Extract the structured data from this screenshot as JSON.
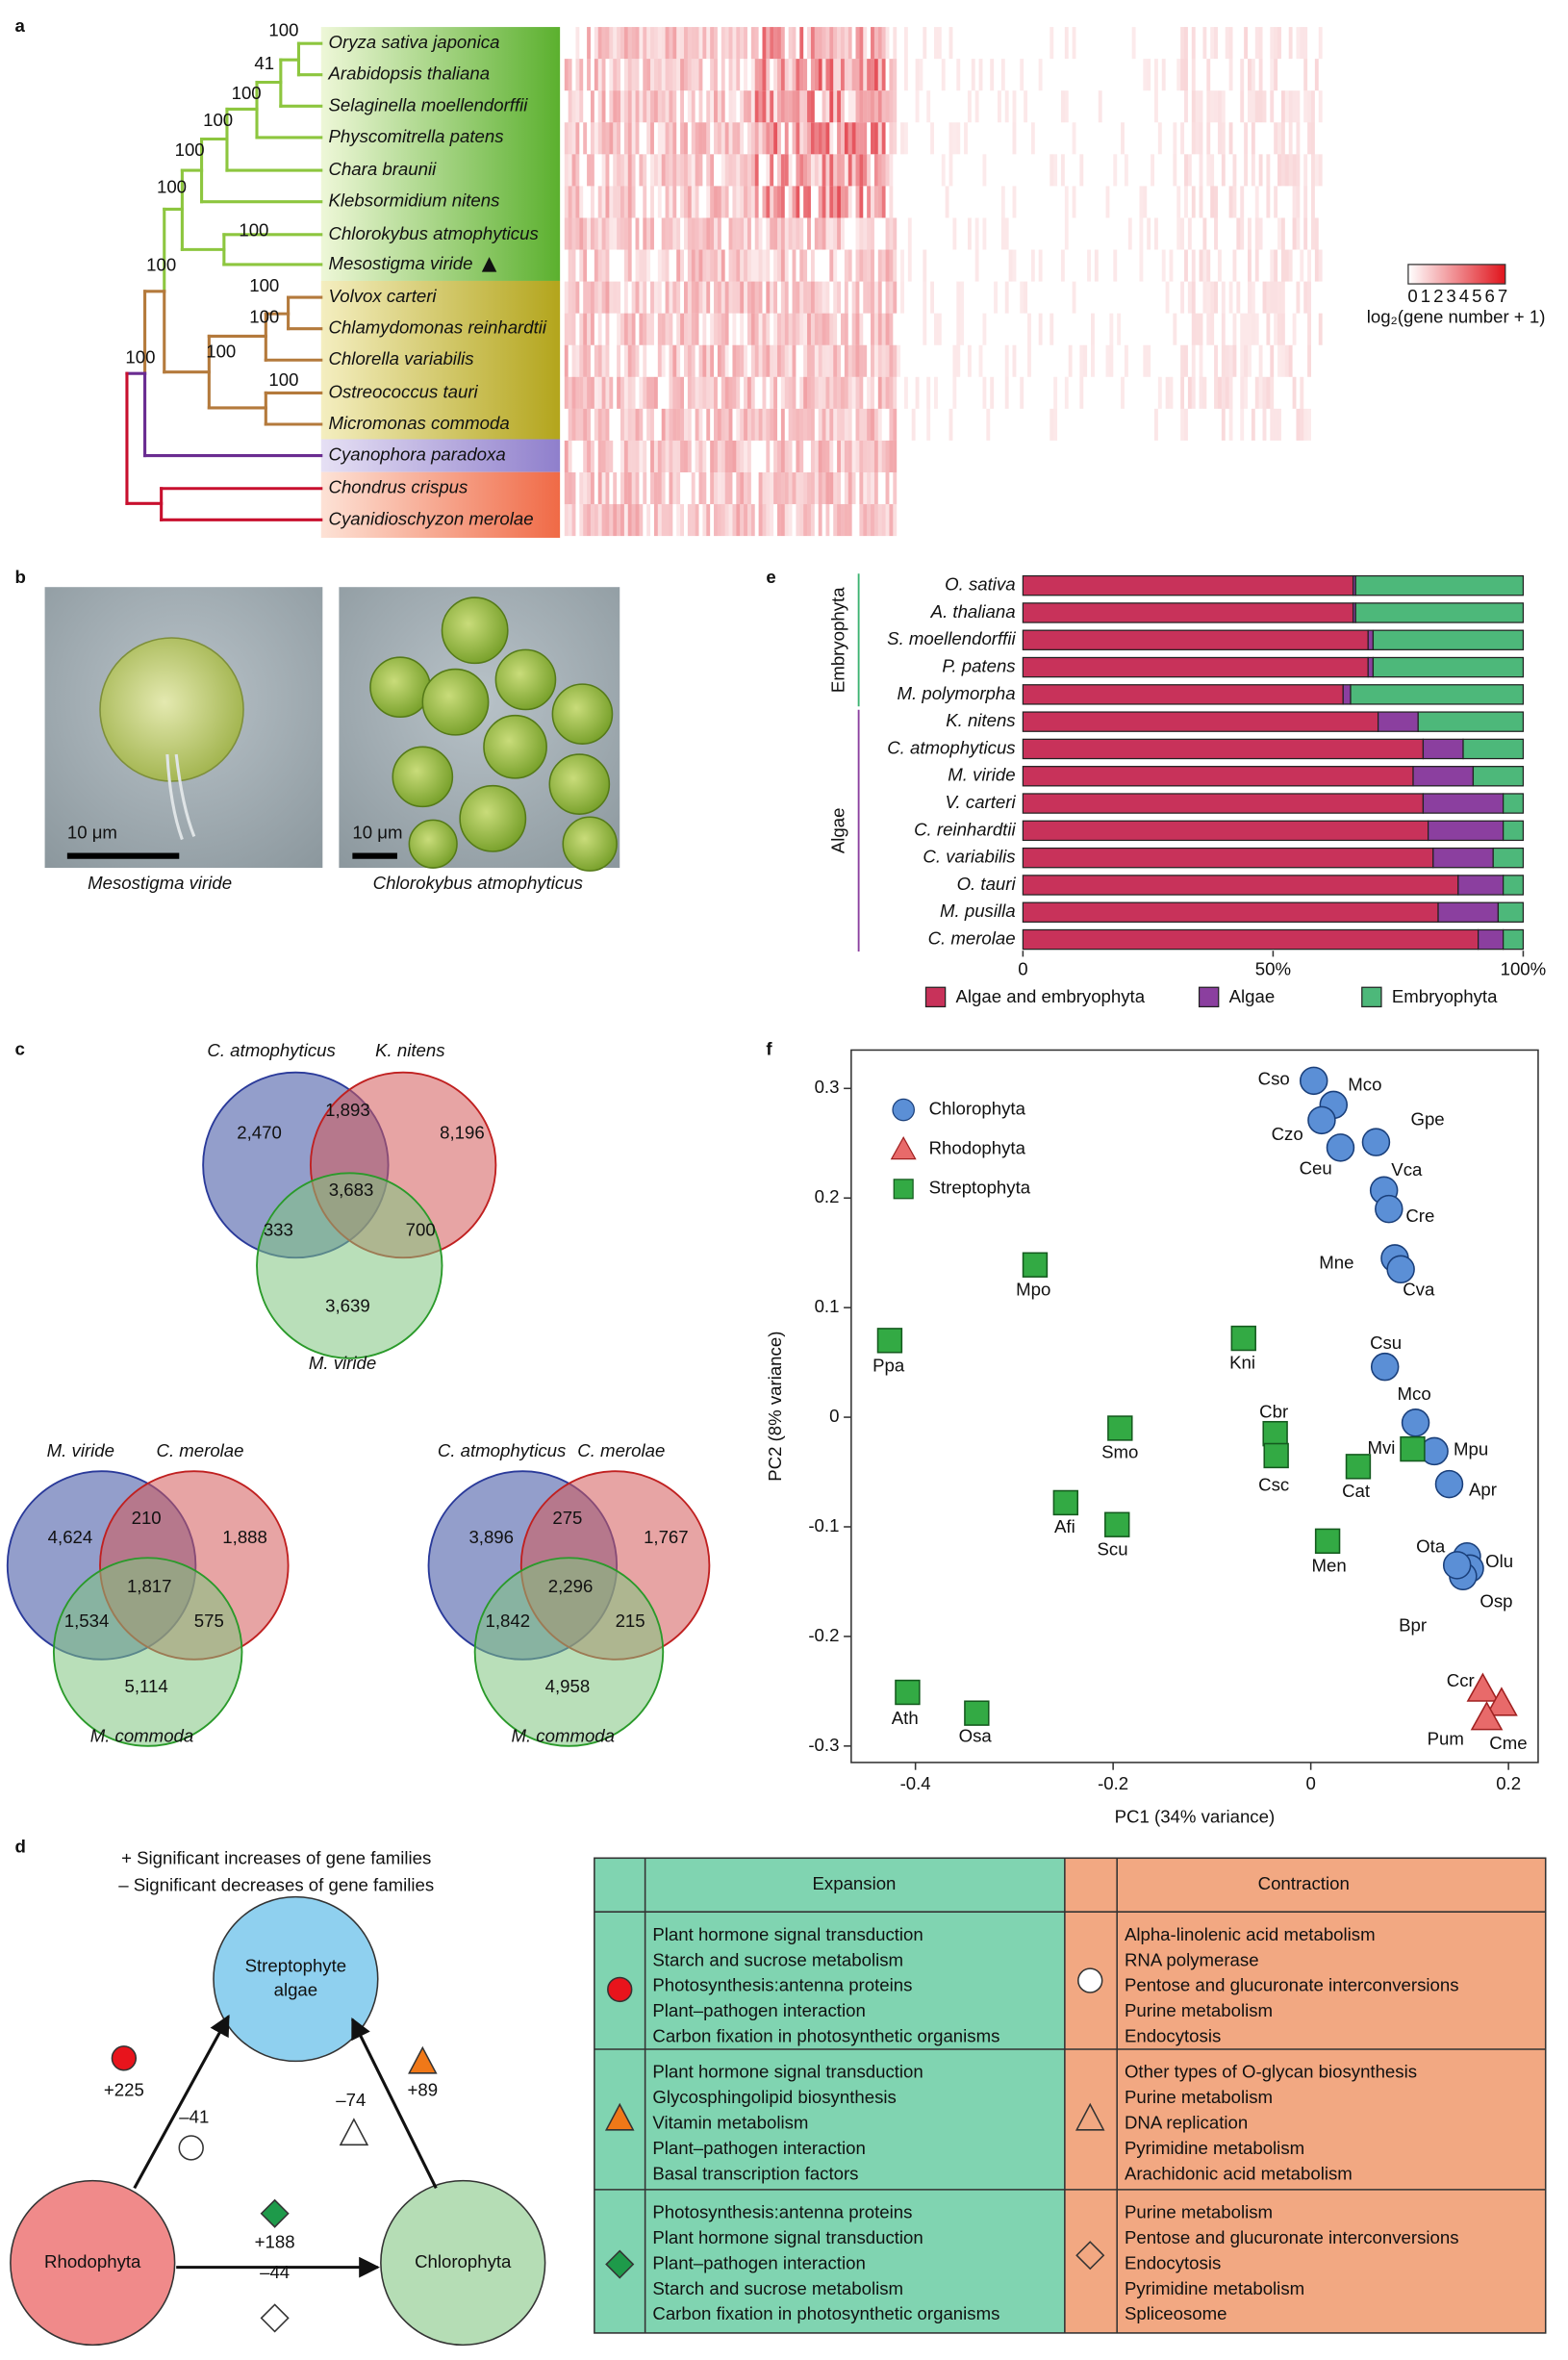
{
  "panels": [
    "a",
    "b",
    "c",
    "d",
    "e",
    "f"
  ],
  "tree": {
    "leaves": [
      "Oryza sativa japonica",
      "Arabidopsis thaliana",
      "Selaginella moellendorffii",
      "Physcomitrella patens",
      "Chara braunii",
      "Klebsormidium nitens",
      "Chlorokybus atmophyticus",
      "Mesostigma viride",
      "Volvox carteri",
      "Chlamydomonas reinhardtii",
      "Chlorella variabilis",
      "Ostreococcus tauri",
      "Micromonas commoda",
      "Cyanophora paradoxa",
      "Chondrus crispus",
      "Cyanidioschyzon merolae"
    ],
    "supports": [
      100,
      41,
      100,
      100,
      100,
      100,
      100,
      100,
      100,
      100,
      100,
      100,
      100
    ]
  },
  "heatmap_legend": {
    "ticks": [
      0,
      1,
      2,
      3,
      4,
      5,
      6,
      7
    ],
    "label": "log₂(gene number + 1)"
  },
  "micrographs": [
    {
      "caption": "Mesostigma viride",
      "scale": "10 μm"
    },
    {
      "caption": "Chlorokybus atmophyticus",
      "scale": "10 μm"
    }
  ],
  "venns": [
    {
      "sets": [
        "C. atmophyticus",
        "K. nitens",
        "M. viride"
      ],
      "values": [
        2470,
        1893,
        8196,
        3683,
        333,
        700,
        3639
      ],
      "value_labels": [
        "2,470",
        "1,893",
        "8,196",
        "3,683",
        "333",
        "700",
        "3,639"
      ]
    },
    {
      "sets": [
        "M. viride",
        "C. merolae",
        "M. commoda"
      ],
      "values": [
        4624,
        210,
        1888,
        1817,
        1534,
        575,
        5114
      ],
      "value_labels": [
        "4,624",
        "210",
        "1,888",
        "1,817",
        "1,534",
        "575",
        "5,114"
      ]
    },
    {
      "sets": [
        "C. atmophyticus",
        "C. merolae",
        "M. commoda"
      ],
      "values": [
        3896,
        275,
        1767,
        2296,
        1842,
        215,
        4958
      ],
      "value_labels": [
        "3,896",
        "275",
        "1,767",
        "2,296",
        "1,842",
        "215",
        "4,958"
      ]
    }
  ],
  "gene_family_diagram": {
    "legend": [
      "+ Significant increases of gene families",
      "– Significant decreases of gene families"
    ],
    "nodes": [
      [
        "Streptophyte",
        "algae"
      ],
      [
        "Rhodophyta"
      ],
      [
        "Chlorophyta"
      ]
    ],
    "changes": [
      {
        "value": 225,
        "label": "+225"
      },
      {
        "value": -41,
        "label": "–41"
      },
      {
        "value": -74,
        "label": "–74"
      },
      {
        "value": 89,
        "label": "+89"
      },
      {
        "value": 188,
        "label": "+188"
      },
      {
        "value": -44,
        "label": "–44"
      }
    ]
  },
  "table": {
    "header": [
      "Expansion",
      "Contraction"
    ],
    "rows": [
      {
        "expansion": [
          "Plant hormone signal transduction",
          "Starch and sucrose metabolism",
          "Photosynthesis:antenna proteins",
          "Plant–pathogen interaction",
          "Carbon fixation in photosynthetic organisms"
        ],
        "contraction": [
          "Alpha-linolenic acid metabolism",
          "RNA polymerase",
          "Pentose and glucuronate interconversions",
          "Purine metabolism",
          "Endocytosis"
        ]
      },
      {
        "expansion": [
          "Plant hormone signal transduction",
          "Glycosphingolipid biosynthesis",
          "Vitamin metabolism",
          "Plant–pathogen interaction",
          "Basal transcription factors"
        ],
        "contraction": [
          "Other types of O-glycan biosynthesis",
          "Purine metabolism",
          "DNA replication",
          "Pyrimidine metabolism",
          "Arachidonic acid metabolism"
        ]
      },
      {
        "expansion": [
          "Photosynthesis:antenna proteins",
          "Plant hormone signal transduction",
          "Plant–pathogen interaction",
          "Starch and sucrose metabolism",
          "Carbon fixation in photosynthetic organisms"
        ],
        "contraction": [
          "Purine metabolism",
          "Pentose and glucuronate interconversions",
          "Endocytosis",
          "Pyrimidine metabolism",
          "Spliceosome"
        ]
      }
    ]
  },
  "chart_data": [
    {
      "type": "bar",
      "orientation": "horizontal",
      "stacked": true,
      "categories": [
        "O. sativa",
        "A. thaliana",
        "S. moellendorffii",
        "P. patens",
        "M. polymorpha",
        "K. nitens",
        "C. atmophyticus",
        "M. viride",
        "V. carteri",
        "C. reinhardtii",
        "C. variabilis",
        "O. tauri",
        "M. pusilla",
        "C. merolae"
      ],
      "series": [
        {
          "name": "Algae and embryophyta",
          "color": "#c8325a",
          "values": [
            66,
            66,
            69,
            69,
            64,
            71,
            80,
            78,
            80,
            81,
            82,
            87,
            83,
            91
          ]
        },
        {
          "name": "Algae",
          "color": "#8b3f9f",
          "values": [
            0.5,
            0.5,
            1,
            1,
            1.5,
            8,
            8,
            12,
            16,
            15,
            12,
            9,
            12,
            5
          ]
        },
        {
          "name": "Embryophyta",
          "color": "#4db87a",
          "values": [
            33.5,
            33.5,
            30,
            30,
            34.5,
            21,
            12,
            10,
            4,
            4,
            6,
            4,
            5,
            4
          ]
        }
      ],
      "groups": [
        {
          "label": "Embryophyta",
          "color": "#3cb371",
          "members": [
            "O. sativa",
            "A. thaliana",
            "S. moellendorffii",
            "P. patens",
            "M. polymorpha"
          ]
        },
        {
          "label": "Algae",
          "color": "#8b3f9f",
          "members": [
            "K. nitens",
            "C. atmophyticus",
            "M. viride",
            "V. carteri",
            "C. reinhardtii",
            "C. variabilis",
            "O. tauri",
            "M. pusilla",
            "C. merolae"
          ]
        }
      ],
      "xlim": [
        0,
        100
      ],
      "xticks": [
        0,
        {
          "value": 50,
          "label": "50%"
        },
        {
          "value": 100,
          "label": "100%"
        }
      ],
      "legend": "bottom"
    },
    {
      "type": "scatter",
      "xlabel": "PC1 (34% variance)",
      "ylabel": "PC2 (8% variance)",
      "xlim": [
        -0.465,
        0.23
      ],
      "ylim": [
        -0.315,
        0.335
      ],
      "xticks": [
        -0.4,
        -0.2,
        0,
        0.2
      ],
      "yticks": [
        -0.3,
        -0.2,
        -0.1,
        0,
        0.1,
        0.2,
        0.3
      ],
      "legend": "top-left",
      "series": [
        {
          "name": "Chlorophyta",
          "color": "#5b8fd6",
          "marker": "circle",
          "labels": [
            "Cso",
            "Mco",
            "Czo",
            "Ceu",
            "Gpe",
            "Vca",
            "Cre",
            "Mne",
            "Cva",
            "Csu",
            "Mco",
            "Mpu",
            "Apr",
            "Ota",
            "Olu",
            "Osp",
            "Bpr"
          ],
          "x": [
            0.003,
            0.023,
            0.011,
            0.03,
            0.066,
            0.074,
            0.079,
            0.085,
            0.091,
            0.075,
            0.106,
            0.125,
            0.14,
            0.158,
            0.161,
            0.154,
            0.148
          ],
          "values": [
            0.307,
            0.285,
            0.271,
            0.246,
            0.251,
            0.207,
            0.19,
            0.145,
            0.135,
            0.046,
            -0.005,
            -0.031,
            -0.061,
            -0.127,
            -0.138,
            -0.145,
            -0.135
          ]
        },
        {
          "name": "Rhodophyta",
          "color": "#e86a6a",
          "marker": "triangle",
          "labels": [
            "Ccr",
            "Cme",
            "Pum"
          ],
          "x": [
            0.174,
            0.193,
            0.178
          ],
          "values": [
            -0.248,
            -0.261,
            -0.274
          ]
        },
        {
          "name": "Streptophyta",
          "color": "#33aa44",
          "marker": "square",
          "labels": [
            "Ppa",
            "Mpo",
            "Smo",
            "Afi",
            "Scu",
            "Kni",
            "Cbr",
            "Csc",
            "Cat",
            "Mvi",
            "Men",
            "Ath",
            "Osa"
          ],
          "x": [
            -0.426,
            -0.279,
            -0.193,
            -0.248,
            -0.196,
            -0.068,
            -0.036,
            -0.035,
            0.048,
            0.103,
            0.017,
            -0.408,
            -0.338
          ],
          "values": [
            0.07,
            0.139,
            -0.01,
            -0.078,
            -0.098,
            0.072,
            -0.015,
            -0.035,
            -0.045,
            -0.029,
            -0.113,
            -0.251,
            -0.27
          ]
        }
      ]
    }
  ]
}
